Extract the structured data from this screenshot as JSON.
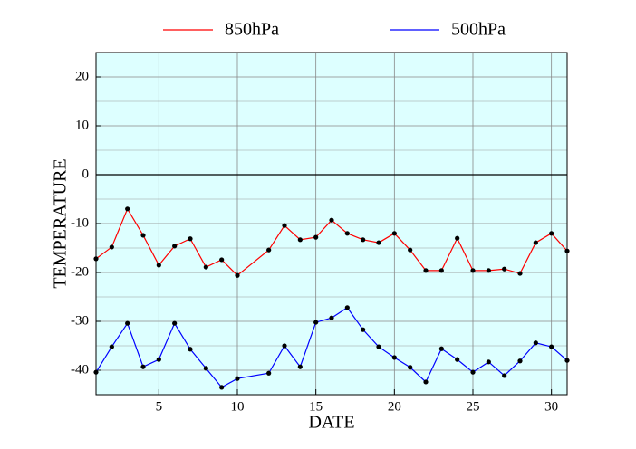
{
  "chart_data": {
    "type": "line",
    "x_label": "DATE",
    "y_label": "TEMPERATURE",
    "x": [
      1,
      2,
      3,
      4,
      5,
      6,
      7,
      8,
      9,
      10,
      12,
      13,
      14,
      15,
      16,
      17,
      18,
      19,
      20,
      21,
      22,
      23,
      24,
      25,
      26,
      27,
      28,
      29,
      30,
      31
    ],
    "series": [
      {
        "name": "850hPa",
        "color": "#ff0000",
        "values": [
          -17.2,
          -14.8,
          -7.0,
          -12.4,
          -18.5,
          -14.6,
          -13.1,
          -18.9,
          -17.4,
          -20.6,
          -15.4,
          -10.4,
          -13.3,
          -12.8,
          -9.3,
          -12.0,
          -13.3,
          -13.9,
          -12.0,
          -15.4,
          -19.6,
          -19.6,
          -13.0,
          -19.6,
          -19.6,
          -19.3,
          -20.2,
          -13.9,
          -12.0,
          -15.6
        ]
      },
      {
        "name": "500hPa",
        "color": "#0000ff",
        "values": [
          -40.4,
          -35.2,
          -30.4,
          -39.3,
          -37.8,
          -30.4,
          -35.7,
          -39.6,
          -43.5,
          -41.7,
          -40.6,
          -35.0,
          -39.3,
          -30.2,
          -29.3,
          -27.2,
          -31.7,
          -35.2,
          -37.4,
          -39.4,
          -42.4,
          -35.6,
          -37.8,
          -40.4,
          -38.3,
          -41.1,
          -38.1,
          -34.4,
          -35.2,
          -38.0
        ]
      }
    ],
    "xlim": [
      1,
      31
    ],
    "ylim": [
      -45,
      25
    ],
    "xticks": [
      5,
      10,
      15,
      20,
      25,
      30
    ],
    "yticks": [
      -40,
      -30,
      -20,
      -10,
      0,
      10,
      20
    ],
    "minor_yticks": [
      -35,
      -25,
      -15,
      -5,
      5,
      15
    ],
    "grid": true,
    "zero_line": true,
    "marker_color": "#000000",
    "background": "#ddffff"
  }
}
